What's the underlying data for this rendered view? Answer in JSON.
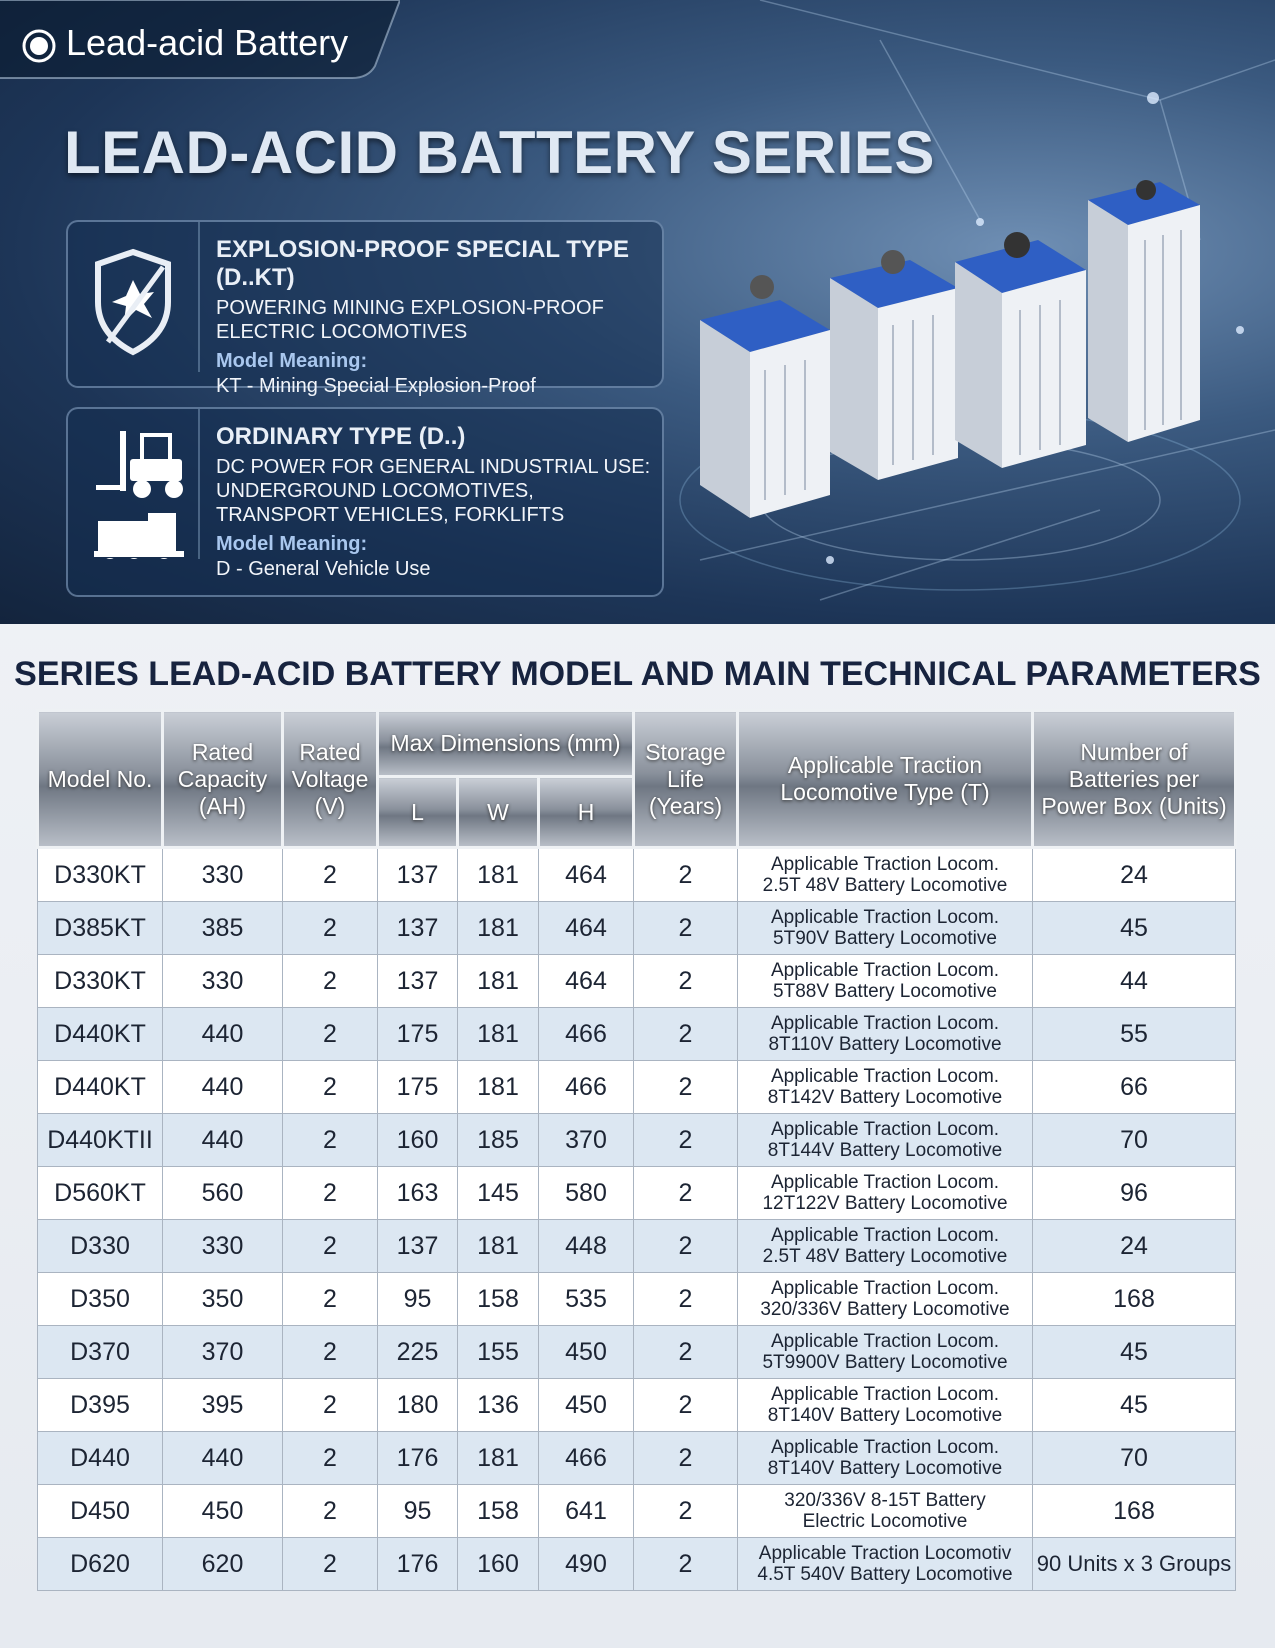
{
  "header": {
    "tag": "Lead-acid Battery",
    "title": "LEAD-ACID BATTERY SERIES"
  },
  "cards": [
    {
      "heading": "EXPLOSION-PROOF SPECIAL TYPE (D..KT)",
      "description": "POWERING MINING EXPLOSION-PROOF ELECTRIC LOCOMOTIVES",
      "meaning_label": "Model Meaning:",
      "meaning": "KT - Mining Special Explosion-Proof"
    },
    {
      "heading": "ORDINARY TYPE (D..)",
      "description": "DC POWER FOR GENERAL INDUSTRIAL USE: UNDERGROUND LOCOMOTIVES, TRANSPORT VEHICLES, FORKLIFTS",
      "meaning_label": "Model Meaning:",
      "meaning": "D - General Vehicle Use"
    }
  ],
  "table": {
    "title": "SERIES LEAD-ACID BATTERY MODEL AND MAIN TECHNICAL PARAMETERS",
    "headers": [
      "Model No.",
      "Rated Capacity (AH)",
      "Rated Voltage (V)",
      "Max Dimensions (mm)",
      "Storage Life (Years)",
      "Applicable Traction Locomotive Type (T)",
      "Number of Batteries per Power Box (Units)"
    ],
    "subheaders": [
      "L",
      "W",
      "H"
    ],
    "rows": [
      [
        "D330KT",
        330,
        2,
        137,
        181,
        464,
        2,
        [
          "Applicable Traction Locom.",
          "2.5T 48V Battery Locomotive"
        ],
        24
      ],
      [
        "D385KT",
        385,
        2,
        137,
        181,
        464,
        2,
        [
          "Applicable Traction Locom.",
          "5T90V Battery Locomotive"
        ],
        45
      ],
      [
        "D330KT",
        330,
        2,
        137,
        181,
        464,
        2,
        [
          "Applicable Traction Locom.",
          "5T88V Battery Locomotive"
        ],
        44
      ],
      [
        "D440KT",
        440,
        2,
        175,
        181,
        466,
        2,
        [
          "Applicable Traction Locom.",
          "8T110V Battery Locomotive"
        ],
        55
      ],
      [
        "D440KT",
        440,
        2,
        175,
        181,
        466,
        2,
        [
          "Applicable Traction Locom.",
          "8T142V Battery Locomotive"
        ],
        66
      ],
      [
        "D440KTII",
        440,
        2,
        160,
        185,
        370,
        2,
        [
          "Applicable Traction Locom.",
          "8T144V Battery Locomotive"
        ],
        70
      ],
      [
        "D560KT",
        560,
        2,
        163,
        145,
        580,
        2,
        [
          "Applicable Traction Locom.",
          "12T122V Battery Locomotive"
        ],
        96
      ],
      [
        "D330",
        330,
        2,
        137,
        181,
        448,
        2,
        [
          "Applicable Traction Locom.",
          "2.5T 48V Battery Locomotive"
        ],
        24
      ],
      [
        "D350",
        350,
        2,
        95,
        158,
        535,
        2,
        [
          "Applicable Traction Locom.",
          "320/336V Battery Locomotive"
        ],
        168
      ],
      [
        "D370",
        370,
        2,
        225,
        155,
        450,
        2,
        [
          "Applicable Traction Locom.",
          "5T9900V Battery Locomotive"
        ],
        45
      ],
      [
        "D395",
        395,
        2,
        180,
        136,
        450,
        2,
        [
          "Applicable Traction Locom.",
          "8T140V Battery Locomotive"
        ],
        45
      ],
      [
        "D440",
        440,
        2,
        176,
        181,
        466,
        2,
        [
          "Applicable Traction Locom.",
          "8T140V Battery Locomotive"
        ],
        70
      ],
      [
        "D450",
        450,
        2,
        95,
        158,
        641,
        2,
        [
          "320/336V 8-15T Battery",
          "Electric Locomotive"
        ],
        168
      ],
      [
        "D620",
        620,
        2,
        176,
        160,
        490,
        2,
        [
          "Applicable Traction Locomotiv",
          "4.5T 540V Battery Locomotive"
        ],
        "90 Units x 3 Groups"
      ]
    ]
  }
}
